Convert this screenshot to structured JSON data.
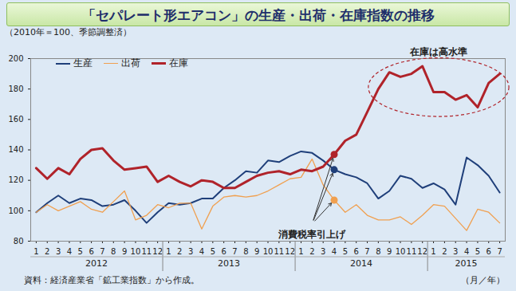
{
  "chart_data": {
    "type": "line",
    "title": "「セパレート形エアコン」の生産・出荷・在庫指数の推移",
    "subtitle": "（2010年＝100、季節調整済）",
    "source": "資料：経済産業省「鉱工業指数」から作成。",
    "x_label": "（月／年）",
    "categories": [
      "1",
      "2",
      "3",
      "4",
      "5",
      "6",
      "7",
      "8",
      "9",
      "10",
      "11",
      "12",
      "1",
      "2",
      "3",
      "4",
      "5",
      "6",
      "7",
      "8",
      "9",
      "10",
      "11",
      "12",
      "1",
      "2",
      "3",
      "4",
      "5",
      "6",
      "7",
      "8",
      "9",
      "10",
      "11",
      "12",
      "1",
      "2",
      "3",
      "4",
      "5",
      "6",
      "7"
    ],
    "year_groups": [
      {
        "label": "2012",
        "months": 12
      },
      {
        "label": "2013",
        "months": 12
      },
      {
        "label": "2014",
        "months": 12
      },
      {
        "label": "2015",
        "months": 7
      }
    ],
    "series": [
      {
        "name": "生産",
        "color": "#1f3f7a",
        "values": [
          99,
          105,
          110,
          105,
          108,
          107,
          103,
          104,
          107,
          100,
          92,
          99,
          105,
          104,
          105,
          108,
          108,
          115,
          120,
          126,
          125,
          133,
          132,
          136,
          139,
          138,
          133,
          127,
          124,
          122,
          118,
          108,
          113,
          123,
          121,
          115,
          118,
          114,
          104,
          135,
          130,
          123,
          112
        ]
      },
      {
        "name": "出荷",
        "color": "#f0a050",
        "values": [
          99,
          104,
          100,
          103,
          106,
          101,
          99,
          106,
          113,
          94,
          97,
          104,
          102,
          105,
          105,
          88,
          103,
          109,
          110,
          109,
          110,
          113,
          117,
          121,
          122,
          134,
          117,
          107,
          99,
          104,
          97,
          94,
          94,
          96,
          91,
          97,
          104,
          103,
          95,
          87,
          101,
          99,
          92
        ]
      },
      {
        "name": "在庫",
        "color": "#b0232a",
        "values": [
          128,
          121,
          128,
          124,
          134,
          140,
          141,
          133,
          127,
          128,
          129,
          119,
          123,
          119,
          116,
          120,
          119,
          115,
          115,
          119,
          123,
          125,
          126,
          124,
          127,
          126,
          129,
          137,
          146,
          150,
          165,
          180,
          191,
          188,
          190,
          195,
          178,
          178,
          173,
          176,
          168,
          184,
          190
        ]
      }
    ],
    "ylim": [
      80,
      200
    ],
    "yticks": [
      80,
      100,
      120,
      140,
      160,
      180,
      200
    ],
    "grid": false,
    "legend": "top-left",
    "annotations": [
      {
        "text": "消費税率引上げ",
        "index": 27
      },
      {
        "text": "在庫は高水準",
        "series": "在庫",
        "from_index": 31,
        "to_index": 42
      }
    ]
  }
}
